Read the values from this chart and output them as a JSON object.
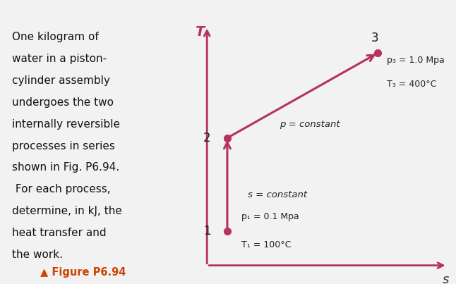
{
  "bg_color": "#f2f2f2",
  "header_color": "#1e3a6e",
  "left_text_lines": [
    "One kilogram of",
    "water in a piston-",
    "cylinder assembly",
    "undergoes the two",
    "internally reversible",
    "processes in series",
    "shown in Fig. P6.94.",
    " For each process,",
    "determine, in kJ, the",
    "heat transfer and",
    "the work."
  ],
  "figure_label": "▲ Figure P6.94",
  "axis_color": "#b5325a",
  "line_color": "#b5325a",
  "dot_color": "#b5325a",
  "p1": [
    0.21,
    0.2
  ],
  "p2": [
    0.21,
    0.55
  ],
  "p3": [
    0.73,
    0.87
  ],
  "label1": "1",
  "label2": "2",
  "label3": "3",
  "ann1_l1": "p₁ = 0.1 Mpa",
  "ann1_l2": "T₁ = 100°C",
  "ann3_l1": "p₃ = 1.0 Mpa",
  "ann3_l2": "T₃ = 400°C",
  "s_const_label": "s = constant",
  "p_const_label": "p = constant",
  "T_label": "T",
  "s_label": "s",
  "text_color": "#111111",
  "fig_label_color": "#cc4400"
}
